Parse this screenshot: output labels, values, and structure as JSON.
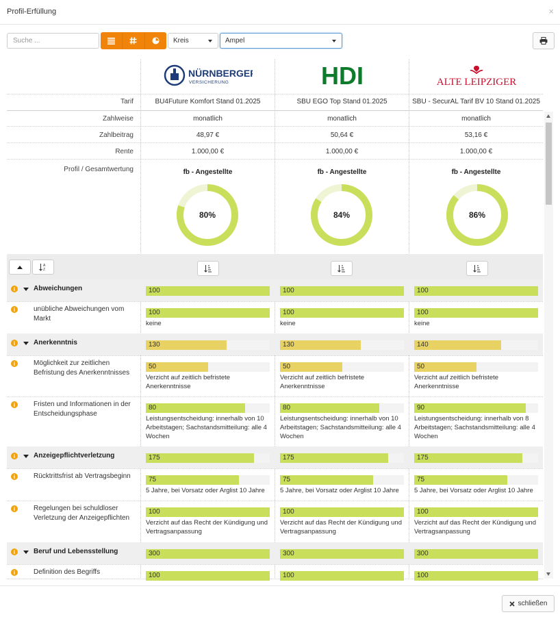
{
  "dialog": {
    "title": "Profil-Erfüllung",
    "close_symbol": "×"
  },
  "toolbar": {
    "search_placeholder": "Suche ...",
    "view_buttons": [
      "list-icon",
      "hash-icon",
      "pie-icon"
    ],
    "select_chart": "Kreis",
    "select_mode": "Ampel",
    "print_icon": "printer-icon"
  },
  "colors": {
    "accent": "#f0830a",
    "green": "#c9de5a",
    "yellow": "#e8d264",
    "info": "#f0a30a"
  },
  "columns": [
    {
      "logo": "NÜRNBERGER",
      "logo_sub": "VERSICHERUNG",
      "tarif": "BU4Future Komfort Stand 01.2025",
      "zahlweise": "monatlich",
      "zahlbeitrag": "48,97 €",
      "rente": "1.000,00 €",
      "profil": "fb - Angestellte",
      "gesamt": "80%",
      "gesamt_value": 80
    },
    {
      "logo": "HDI",
      "logo_sub": "",
      "tarif": "SBU EGO Top Stand 01.2025",
      "zahlweise": "monatlich",
      "zahlbeitrag": "50,64 €",
      "rente": "1.000,00 €",
      "profil": "fb - Angestellte",
      "gesamt": "84%",
      "gesamt_value": 84
    },
    {
      "logo": "ALTE LEIPZIGER",
      "logo_sub": "",
      "tarif": "SBU - SecurAL Tarif BV 10 Stand 01.2025",
      "zahlweise": "monatlich",
      "zahlbeitrag": "53,16 €",
      "rente": "1.000,00 €",
      "profil": "fb - Angestellte",
      "gesamt": "86%",
      "gesamt_value": 86
    }
  ],
  "row_labels": {
    "tarif": "Tarif",
    "zahlweise": "Zahlweise",
    "zahlbeitrag": "Zahlbeitrag",
    "rente": "Rente",
    "profil": "Profil / Gesamtwertung"
  },
  "rows": [
    {
      "type": "cat",
      "label": "Abweichungen",
      "max": 100,
      "values": [
        {
          "v": 100,
          "c": "green",
          "d": ""
        },
        {
          "v": 100,
          "c": "green",
          "d": ""
        },
        {
          "v": 100,
          "c": "green",
          "d": ""
        }
      ]
    },
    {
      "type": "sub",
      "label": "unübliche Abweichungen vom Markt",
      "max": 100,
      "values": [
        {
          "v": 100,
          "c": "green",
          "d": "keine"
        },
        {
          "v": 100,
          "c": "green",
          "d": "keine"
        },
        {
          "v": 100,
          "c": "green",
          "d": "keine"
        }
      ]
    },
    {
      "type": "cat",
      "label": "Anerkenntnis",
      "max": 200,
      "values": [
        {
          "v": 130,
          "c": "yellow",
          "d": ""
        },
        {
          "v": 130,
          "c": "yellow",
          "d": ""
        },
        {
          "v": 140,
          "c": "yellow",
          "d": ""
        }
      ]
    },
    {
      "type": "sub",
      "label": "Möglichkeit zur zeitlichen Befristung des Anerkenntnisses",
      "max": 100,
      "values": [
        {
          "v": 50,
          "c": "yellow",
          "d": "Verzicht auf zeitlich befristete Anerkenntnisse"
        },
        {
          "v": 50,
          "c": "yellow",
          "d": "Verzicht auf zeitlich befristete Anerkenntnisse"
        },
        {
          "v": 50,
          "c": "yellow",
          "d": "Verzicht auf zeitlich befristete Anerkenntnisse"
        }
      ]
    },
    {
      "type": "sub",
      "label": "Fristen und Informationen in der Entscheidungsphase",
      "max": 100,
      "values": [
        {
          "v": 80,
          "c": "green",
          "d": "Leistungsentscheidung: innerhalb von 10 Arbeitstagen; Sachstandsmitteilung: alle 4 Wochen"
        },
        {
          "v": 80,
          "c": "green",
          "d": "Leistungsentscheidung: innerhalb von 10 Arbeitstagen; Sachstandsmitteilung: alle 4 Wochen"
        },
        {
          "v": 90,
          "c": "green",
          "d": "Leistungsentscheidung: innerhalb von 8 Arbeitstagen; Sachstandsmitteilung: alle 4 Wochen"
        }
      ]
    },
    {
      "type": "cat",
      "label": "Anzeigepflichtverletzung",
      "max": 200,
      "values": [
        {
          "v": 175,
          "c": "green",
          "d": ""
        },
        {
          "v": 175,
          "c": "green",
          "d": ""
        },
        {
          "v": 175,
          "c": "green",
          "d": ""
        }
      ]
    },
    {
      "type": "sub",
      "label": "Rücktrittsfrist ab Vertragsbeginn",
      "max": 100,
      "values": [
        {
          "v": 75,
          "c": "green",
          "d": "5 Jahre, bei Vorsatz oder Arglist 10 Jahre"
        },
        {
          "v": 75,
          "c": "green",
          "d": "5 Jahre, bei Vorsatz oder Arglist 10 Jahre"
        },
        {
          "v": 75,
          "c": "green",
          "d": "5 Jahre, bei Vorsatz oder Arglist 10 Jahre"
        }
      ]
    },
    {
      "type": "sub",
      "label": "Regelungen bei schuldloser Verletzung der Anzeigepflichten",
      "max": 100,
      "values": [
        {
          "v": 100,
          "c": "green",
          "d": "Verzicht auf das Recht der Kündigung und Vertragsanpassung"
        },
        {
          "v": 100,
          "c": "green",
          "d": "Verzicht auf das Recht der Kündigung und Vertragsanpassung"
        },
        {
          "v": 100,
          "c": "green",
          "d": "Verzicht auf das Recht der Kündigung und Vertragsanpassung"
        }
      ]
    },
    {
      "type": "cat",
      "label": "Beruf und Lebensstellung",
      "max": 300,
      "values": [
        {
          "v": 300,
          "c": "green",
          "d": ""
        },
        {
          "v": 300,
          "c": "green",
          "d": ""
        },
        {
          "v": 300,
          "c": "green",
          "d": ""
        }
      ]
    },
    {
      "type": "sub",
      "label": "Definition des Begriffs",
      "max": 100,
      "values": [
        {
          "v": 100,
          "c": "green",
          "d": ""
        },
        {
          "v": 100,
          "c": "green",
          "d": ""
        },
        {
          "v": 100,
          "c": "green",
          "d": ""
        }
      ]
    }
  ],
  "footer": {
    "close_label": "schließen"
  }
}
